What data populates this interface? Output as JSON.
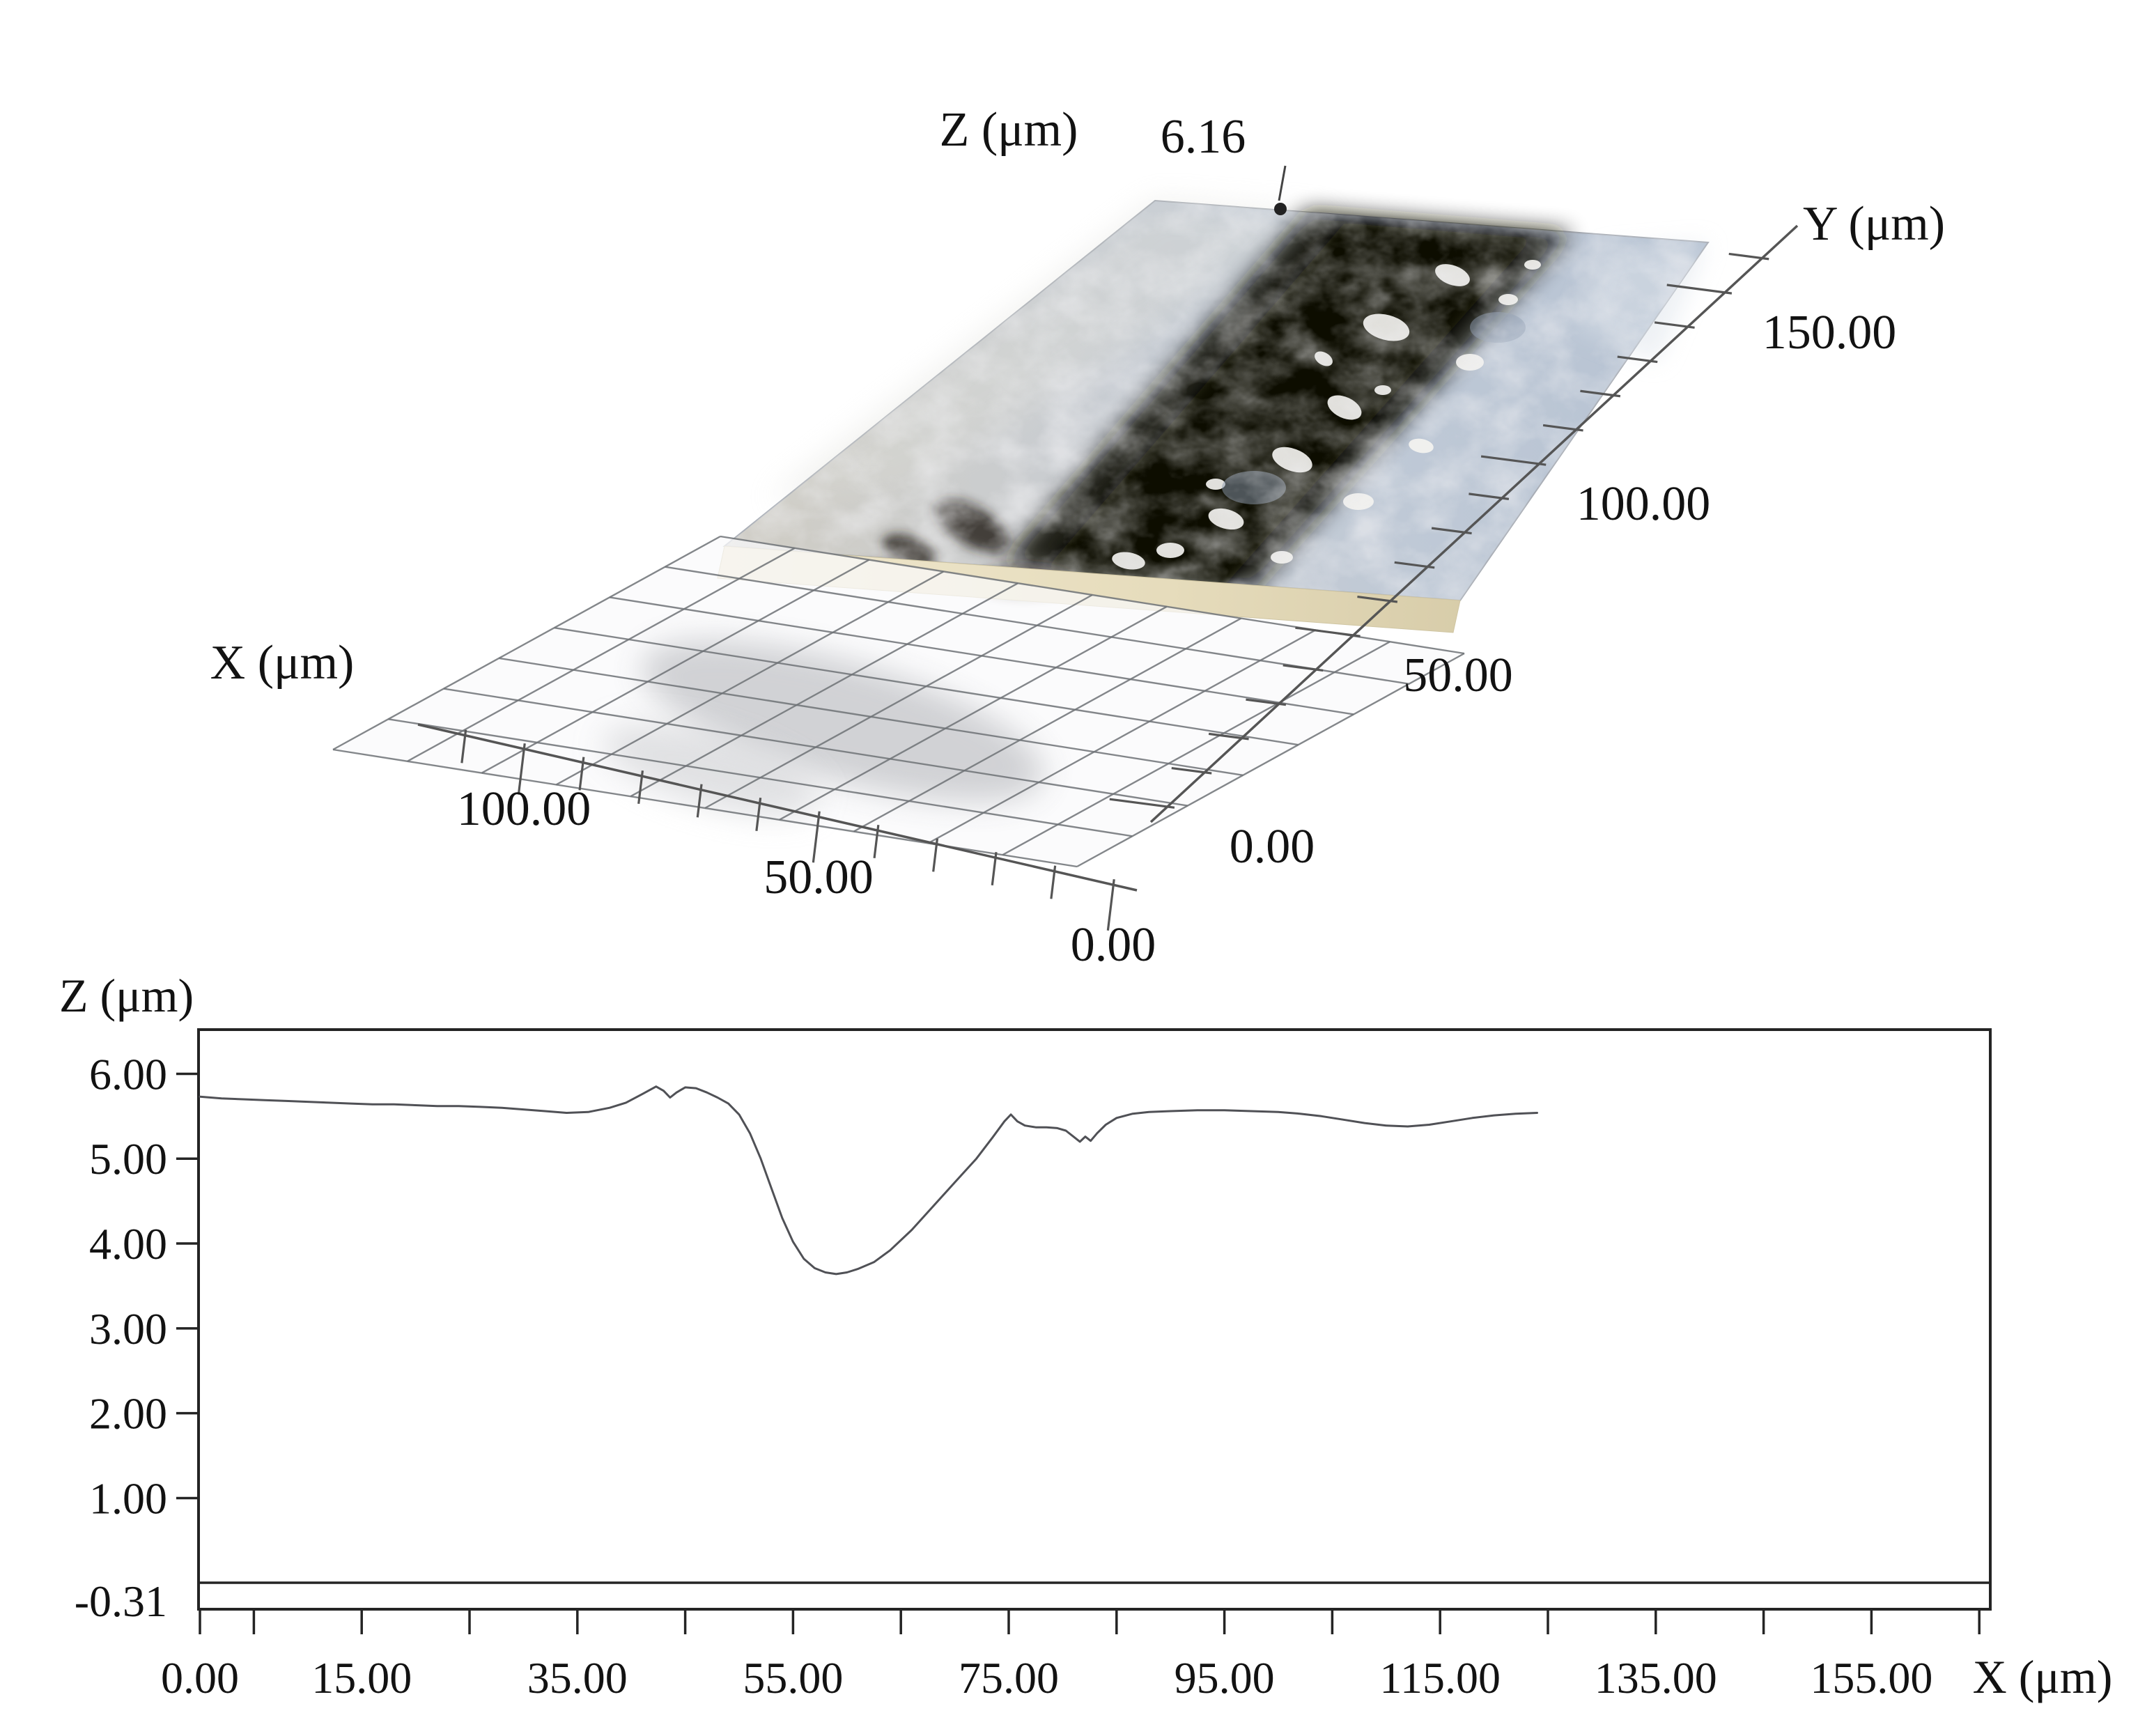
{
  "figure": {
    "plot3d": {
      "z_label": "Z (μm)",
      "z_max": "6.16",
      "y_label": "Y (μm)",
      "y_ticks": [
        "150.00",
        "100.00",
        "50.00",
        "0.00"
      ],
      "x_label": "X (μm)",
      "x_ticks": [
        "100.00",
        "50.00",
        "0.00"
      ]
    },
    "profile": {
      "y_title": "Z (μm)",
      "x_title": "X (μm)",
      "y_tick_labels": [
        "6.00",
        "5.00",
        "4.00",
        "3.00",
        "2.00",
        "1.00"
      ],
      "y_min_label": "-0.31",
      "x_tick_labels": [
        "0.00",
        "15.00",
        "35.00",
        "55.00",
        "75.00",
        "95.00",
        "115.00",
        "135.00",
        "155.00"
      ]
    }
  },
  "chart_data": [
    {
      "type": "heatmap",
      "subtype": "surface_3d_topography",
      "title": "",
      "x_label": "X (μm)",
      "x_ticks": [
        100,
        50,
        0
      ],
      "x_range": [
        0,
        120
      ],
      "y_label": "Y (μm)",
      "y_ticks": [
        150,
        100,
        50,
        0
      ],
      "y_range": [
        0,
        165
      ],
      "z_label": "Z (μm)",
      "z_max": 6.16,
      "description": "Axonometric 3D view of an optical surface scan: a photo-textured plate with a dark wear scar band running along the Y direction near mid-X, floating above a semi-transparent white reference grid plane with ruler axes.",
      "colors": {
        "plate_light": "#c9cdd2",
        "plate_blue": "#b7c3d3",
        "scar_dark": "#17130e",
        "side_wall": "#e9e1c8",
        "grid_line": "#6e7276"
      }
    },
    {
      "type": "line",
      "title": "",
      "x_label": "X (μm)",
      "y_label": "Z (μm)",
      "ylim": [
        -0.31,
        6.51
      ],
      "y_ticks": [
        6,
        5,
        4,
        3,
        2,
        1
      ],
      "y_min_value": -0.31,
      "zero_line": 0.0,
      "grid": false,
      "legend": "none",
      "x_ticks_labeled": [
        0,
        15,
        35,
        55,
        75,
        95,
        115,
        135,
        155
      ],
      "x_ticks_minor": [
        0,
        5,
        15,
        25,
        35,
        45,
        55,
        65,
        75,
        85,
        95,
        105,
        115,
        125,
        135,
        145,
        155,
        165
      ],
      "line_color": "#505156",
      "x": [
        0,
        2,
        4,
        6,
        8,
        10,
        12,
        14,
        16,
        18,
        20,
        22,
        24,
        26,
        28,
        30,
        32,
        34,
        36,
        38,
        39.5,
        41,
        42.3,
        43,
        43.6,
        44.2,
        45,
        46,
        47,
        48,
        49,
        50,
        51,
        52,
        53,
        54,
        55,
        56,
        57,
        58,
        59,
        60,
        61,
        62.5,
        64,
        66,
        68,
        70,
        72,
        73.5,
        74.6,
        75.2,
        75.8,
        76.5,
        77.5,
        78.5,
        79.5,
        80.3,
        81,
        81.6,
        82.1,
        82.6,
        83.2,
        84,
        85,
        86.5,
        88,
        90,
        92.5,
        95,
        97.5,
        100,
        102,
        104,
        106,
        108,
        110,
        112,
        114,
        116,
        118,
        120,
        122,
        124
      ],
      "z": [
        5.73,
        5.71,
        5.7,
        5.69,
        5.68,
        5.67,
        5.66,
        5.65,
        5.64,
        5.64,
        5.63,
        5.62,
        5.62,
        5.61,
        5.6,
        5.58,
        5.56,
        5.54,
        5.55,
        5.6,
        5.66,
        5.76,
        5.85,
        5.8,
        5.72,
        5.78,
        5.84,
        5.83,
        5.78,
        5.72,
        5.65,
        5.52,
        5.3,
        5.0,
        4.65,
        4.3,
        4.02,
        3.82,
        3.71,
        3.66,
        3.64,
        3.66,
        3.7,
        3.78,
        3.92,
        4.16,
        4.44,
        4.72,
        5.0,
        5.25,
        5.44,
        5.52,
        5.44,
        5.39,
        5.37,
        5.37,
        5.36,
        5.33,
        5.26,
        5.2,
        5.26,
        5.21,
        5.3,
        5.4,
        5.48,
        5.53,
        5.55,
        5.56,
        5.57,
        5.57,
        5.56,
        5.55,
        5.53,
        5.5,
        5.46,
        5.42,
        5.39,
        5.38,
        5.4,
        5.44,
        5.48,
        5.51,
        5.53,
        5.54
      ]
    }
  ]
}
